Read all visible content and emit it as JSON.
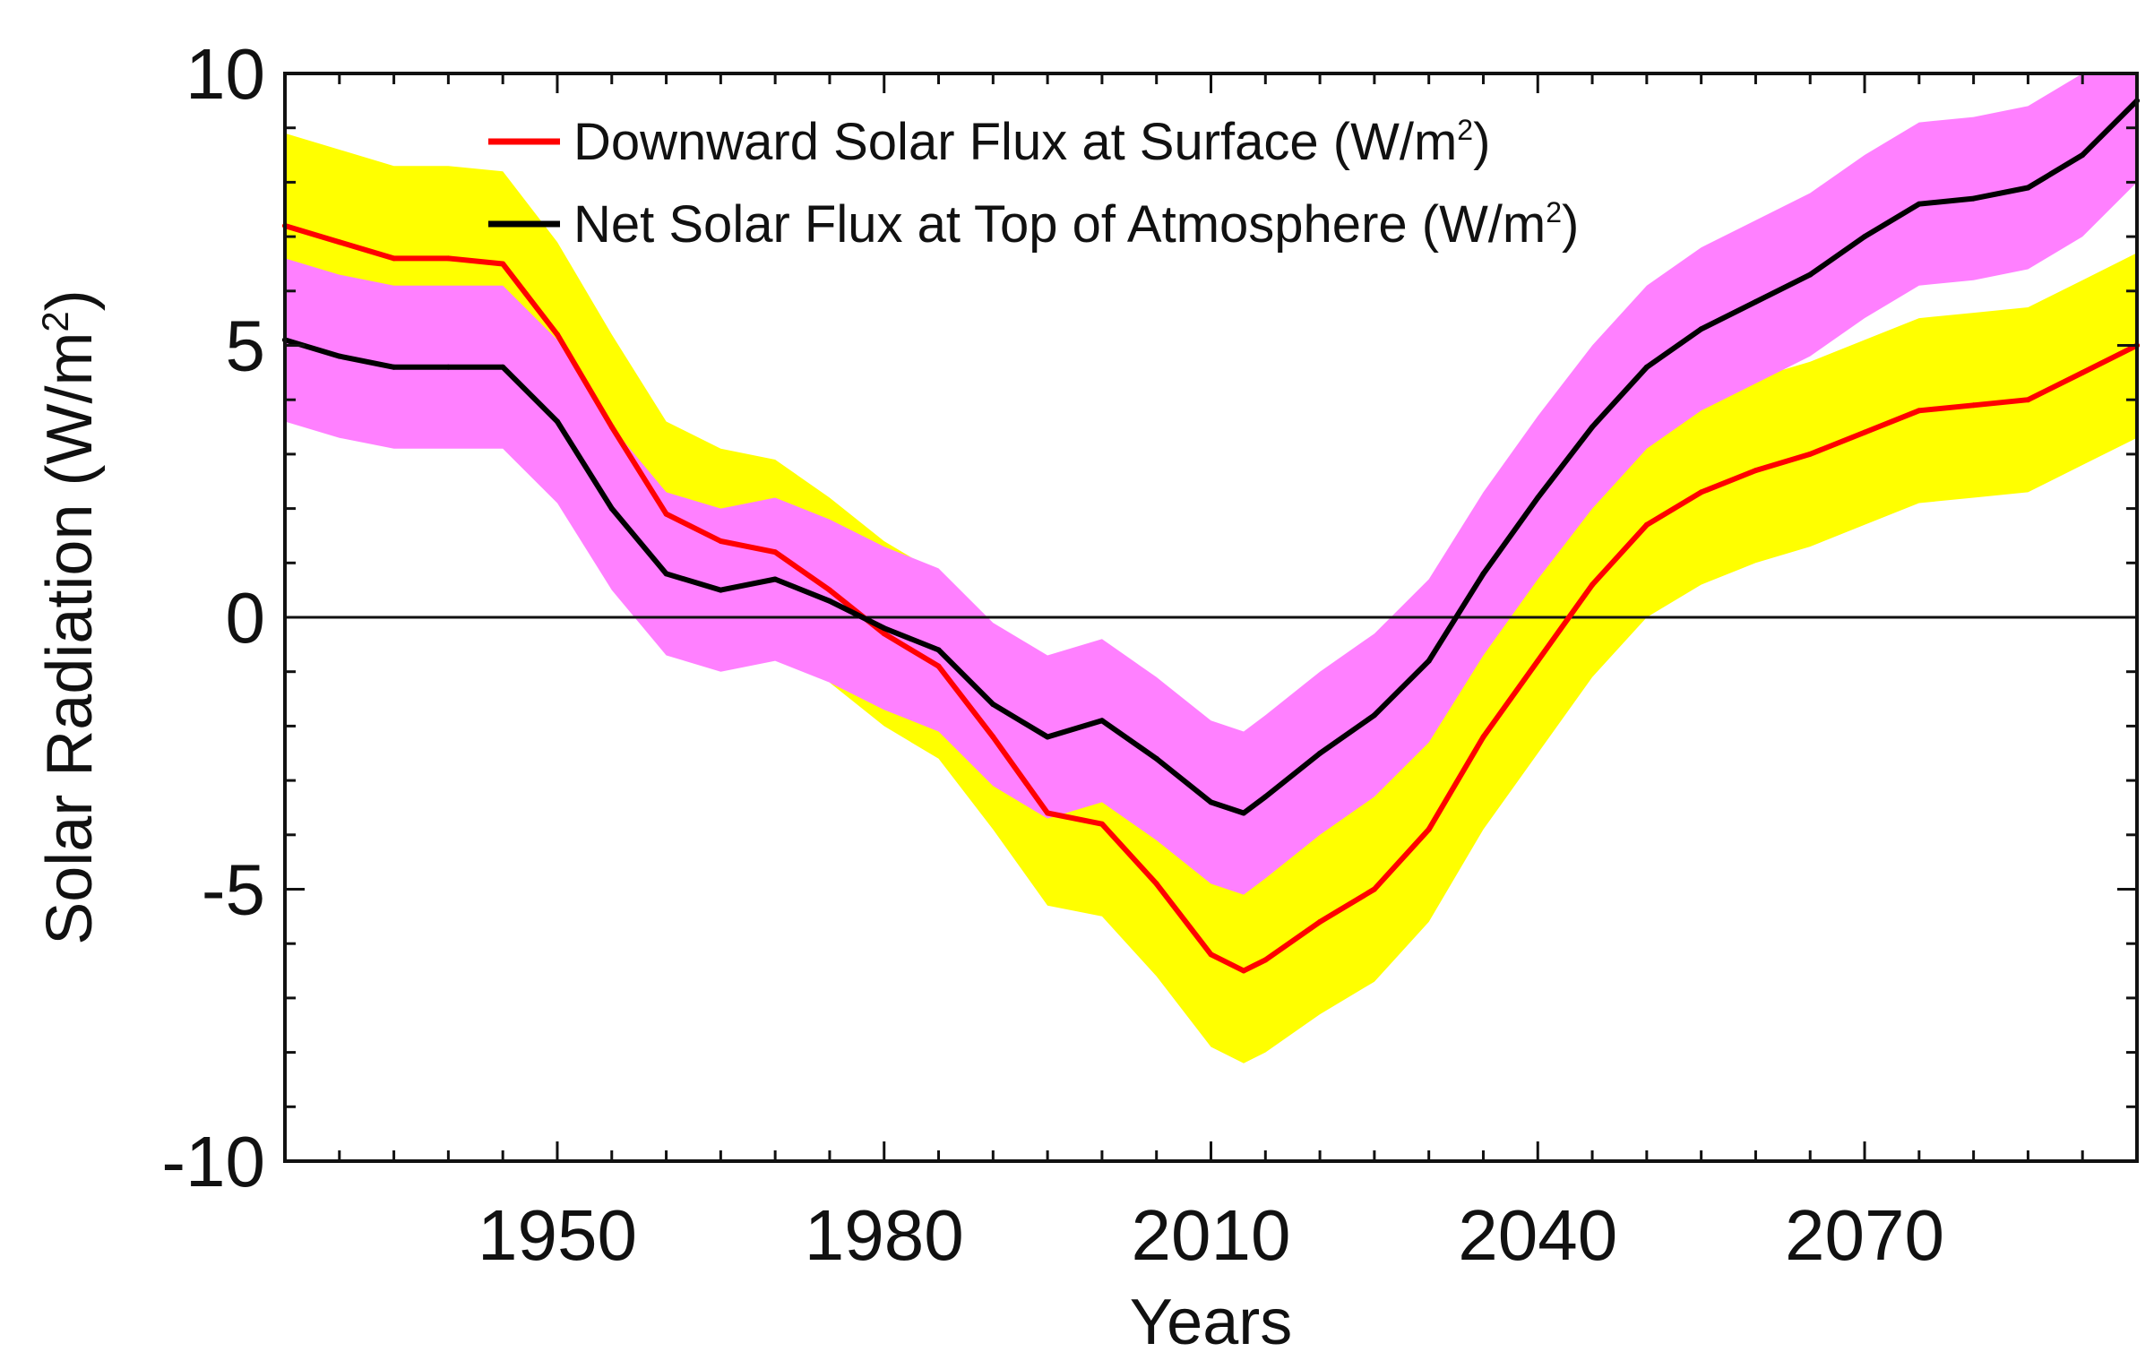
{
  "chart_data": {
    "type": "line",
    "title": "",
    "xlabel": "Years",
    "ylabel": "Solar Radiation (W/m",
    "ylabel_sup": "2",
    "ylabel_close": ")",
    "xlim": [
      1925,
      2095
    ],
    "ylim": [
      -10,
      10
    ],
    "xticks": [
      1950,
      1980,
      2010,
      2040,
      2070
    ],
    "xtick_labels": [
      "1950",
      "1980",
      "2010",
      "2040",
      "2070"
    ],
    "yticks": [
      10,
      5,
      0,
      -5,
      -10
    ],
    "ytick_labels": [
      "10",
      "5",
      "0",
      "-5",
      "-10"
    ],
    "zero_line": 0,
    "legend": {
      "placement": "top-left",
      "entries": [
        {
          "text": "Downward Solar Flux at Surface (W/m",
          "sup": "2",
          "close": ")"
        },
        {
          "text": "Net Solar Flux at Top of Atmosphere (W/m",
          "sup": "2",
          "close": ")"
        }
      ]
    },
    "x": [
      1925,
      1930,
      1935,
      1940,
      1945,
      1950,
      1955,
      1960,
      1965,
      1970,
      1975,
      1980,
      1985,
      1990,
      1995,
      2000,
      2005,
      2010,
      2013,
      2015,
      2020,
      2025,
      2030,
      2035,
      2040,
      2045,
      2050,
      2055,
      2060,
      2065,
      2070,
      2075,
      2080,
      2085,
      2090,
      2095
    ],
    "series": [
      {
        "name": "Downward Solar Flux at Surface (W/m2)",
        "color": "#ff0000",
        "band_color": "#ffff00",
        "values": [
          7.2,
          6.9,
          6.6,
          6.6,
          6.5,
          5.2,
          3.5,
          1.9,
          1.4,
          1.2,
          0.5,
          -0.3,
          -0.9,
          -2.2,
          -3.6,
          -3.8,
          -4.9,
          -6.2,
          -6.5,
          -6.3,
          -5.6,
          -5.0,
          -3.9,
          -2.2,
          -0.8,
          0.6,
          1.7,
          2.3,
          2.7,
          3.0,
          3.4,
          3.8,
          3.9,
          4.0,
          4.5,
          5.0
        ],
        "band_halfwidth": 1.7
      },
      {
        "name": "Net Solar Flux at Top of Atmosphere (W/m2)",
        "color": "#000000",
        "band_color": "#ff80ff",
        "values": [
          5.1,
          4.8,
          4.6,
          4.6,
          4.6,
          3.6,
          2.0,
          0.8,
          0.5,
          0.7,
          0.3,
          -0.2,
          -0.6,
          -1.6,
          -2.2,
          -1.9,
          -2.6,
          -3.4,
          -3.6,
          -3.3,
          -2.5,
          -1.8,
          -0.8,
          0.8,
          2.2,
          3.5,
          4.6,
          5.3,
          5.8,
          6.3,
          7.0,
          7.6,
          7.7,
          7.9,
          8.5,
          9.5
        ],
        "band_halfwidth": 1.5
      }
    ]
  }
}
